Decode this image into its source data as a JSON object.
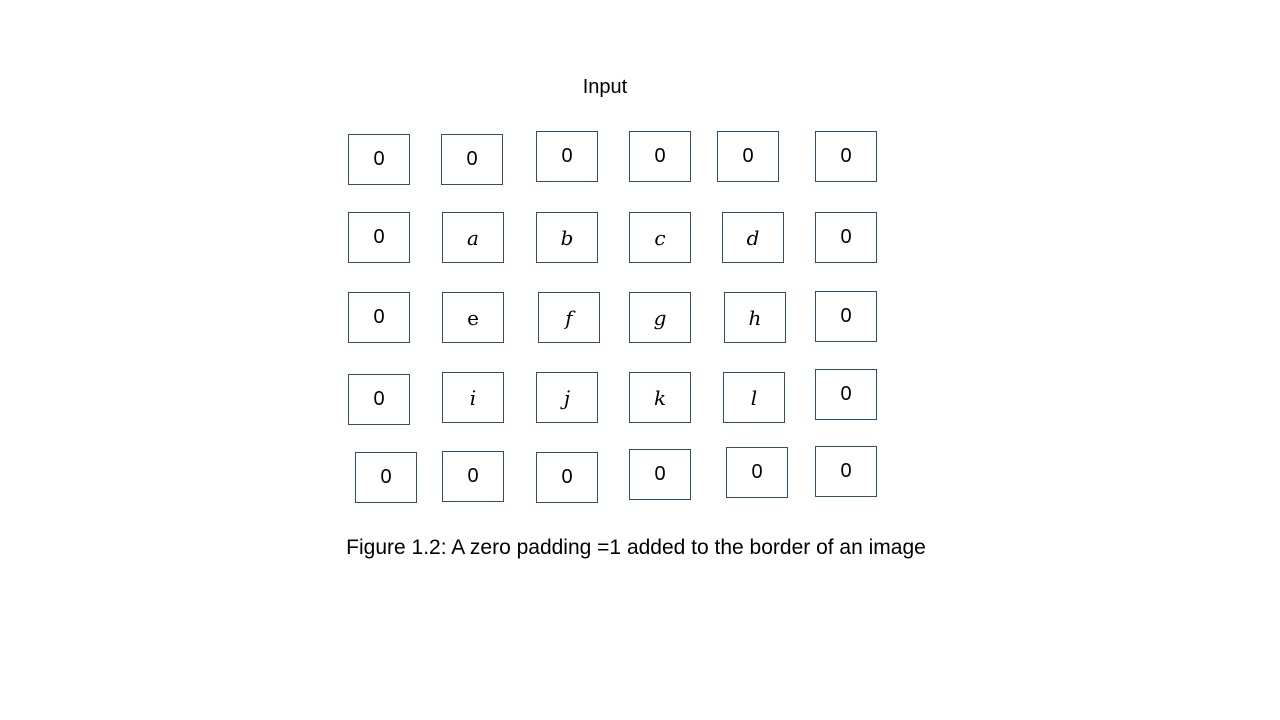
{
  "diagram": {
    "title": "Input",
    "caption": "Figure 1.2: A zero padding =1 added  to the border of an image",
    "grid": [
      [
        {
          "text": "0",
          "style": "zero"
        },
        {
          "text": "0",
          "style": "zero"
        },
        {
          "text": "0",
          "style": "zero"
        },
        {
          "text": "0",
          "style": "zero"
        },
        {
          "text": "0",
          "style": "zero"
        },
        {
          "text": "0",
          "style": "zero"
        }
      ],
      [
        {
          "text": "0",
          "style": "zero"
        },
        {
          "text": "a",
          "style": "var"
        },
        {
          "text": "b",
          "style": "var"
        },
        {
          "text": "c",
          "style": "var"
        },
        {
          "text": "d",
          "style": "var"
        },
        {
          "text": "0",
          "style": "zero"
        }
      ],
      [
        {
          "text": "0",
          "style": "zero"
        },
        {
          "text": "e",
          "style": "plain"
        },
        {
          "text": "f",
          "style": "var"
        },
        {
          "text": "g",
          "style": "var"
        },
        {
          "text": "h",
          "style": "var"
        },
        {
          "text": "0",
          "style": "zero"
        }
      ],
      [
        {
          "text": "0",
          "style": "zero"
        },
        {
          "text": "i",
          "style": "var"
        },
        {
          "text": "j",
          "style": "var"
        },
        {
          "text": "k",
          "style": "var"
        },
        {
          "text": "l",
          "style": "var"
        },
        {
          "text": "0",
          "style": "zero"
        }
      ],
      [
        {
          "text": "0",
          "style": "zero"
        },
        {
          "text": "0",
          "style": "zero"
        },
        {
          "text": "0",
          "style": "zero"
        },
        {
          "text": "0",
          "style": "zero"
        },
        {
          "text": "0",
          "style": "zero"
        },
        {
          "text": "0",
          "style": "zero"
        }
      ]
    ]
  },
  "colors": {
    "cell_border": "#2e4f72",
    "background": "#ffffff",
    "text": "#000000"
  }
}
